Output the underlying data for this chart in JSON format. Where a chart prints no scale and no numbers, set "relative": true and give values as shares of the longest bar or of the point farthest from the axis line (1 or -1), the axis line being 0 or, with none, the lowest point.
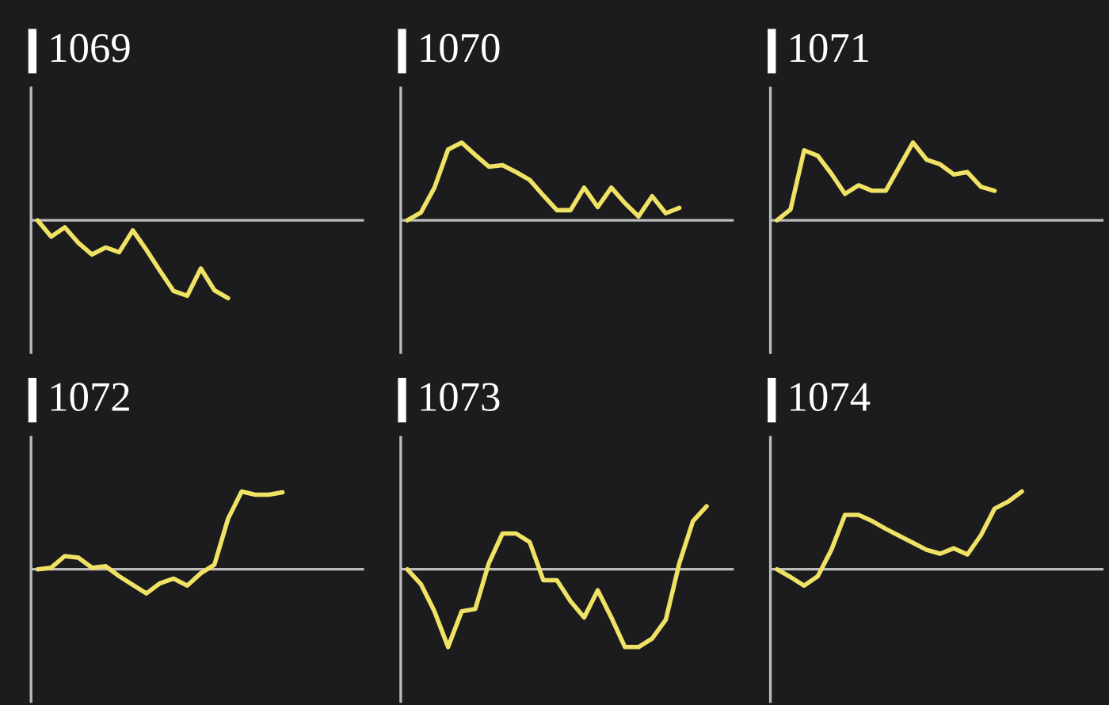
{
  "chart_data": [
    {
      "type": "line",
      "title": "1069",
      "relative": true,
      "color": "#f0e264",
      "categories": [
        null,
        null,
        null,
        null,
        null,
        null,
        null,
        null,
        null,
        null,
        null,
        null,
        null,
        null,
        null,
        null,
        null,
        null,
        null,
        null,
        null,
        null,
        null,
        null
      ],
      "values": [
        0,
        -0.21,
        -0.09,
        -0.29,
        -0.44,
        -0.35,
        -0.41,
        -0.13,
        -0.38,
        -0.65,
        -0.91,
        -0.97,
        -0.62,
        -0.9,
        -1,
        null,
        null,
        null,
        null,
        null,
        null,
        null,
        null,
        null
      ]
    },
    {
      "type": "line",
      "title": "1070",
      "relative": true,
      "color": "#f0e264",
      "categories": [
        null,
        null,
        null,
        null,
        null,
        null,
        null,
        null,
        null,
        null,
        null,
        null,
        null,
        null,
        null,
        null,
        null,
        null,
        null,
        null,
        null,
        null,
        null,
        null
      ],
      "values": [
        0,
        0.1,
        0.42,
        0.91,
        1,
        0.84,
        0.69,
        0.71,
        0.62,
        0.52,
        0.32,
        0.13,
        0.13,
        0.42,
        0.17,
        0.42,
        0.22,
        0.05,
        0.31,
        0.09,
        0.16,
        null,
        null,
        null
      ]
    },
    {
      "type": "line",
      "title": "1071",
      "relative": true,
      "color": "#f0e264",
      "categories": [
        null,
        null,
        null,
        null,
        null,
        null,
        null,
        null,
        null,
        null,
        null,
        null,
        null,
        null,
        null,
        null,
        null,
        null,
        null,
        null,
        null,
        null,
        null,
        null
      ],
      "values": [
        0,
        0.14,
        0.9,
        0.83,
        0.6,
        0.34,
        0.45,
        0.38,
        0.38,
        0.69,
        1,
        0.78,
        0.72,
        0.59,
        0.62,
        0.43,
        0.38,
        null,
        null,
        null,
        null,
        null,
        null,
        null
      ]
    },
    {
      "type": "line",
      "title": "1072",
      "relative": true,
      "color": "#f0e264",
      "categories": [
        null,
        null,
        null,
        null,
        null,
        null,
        null,
        null,
        null,
        null,
        null,
        null,
        null,
        null,
        null,
        null,
        null,
        null,
        null,
        null,
        null,
        null,
        null,
        null
      ],
      "values": [
        0,
        0.02,
        0.17,
        0.15,
        0.02,
        0.04,
        -0.09,
        -0.2,
        -0.31,
        -0.18,
        -0.12,
        -0.21,
        -0.05,
        0.06,
        0.65,
        1,
        0.96,
        0.96,
        0.99,
        null,
        null,
        null,
        null,
        null
      ]
    },
    {
      "type": "line",
      "title": "1073",
      "relative": true,
      "color": "#f0e264",
      "categories": [
        null,
        null,
        null,
        null,
        null,
        null,
        null,
        null,
        null,
        null,
        null,
        null,
        null,
        null,
        null,
        null,
        null,
        null,
        null,
        null,
        null,
        null,
        null,
        null
      ],
      "values": [
        0,
        -0.19,
        -0.54,
        -1,
        -0.54,
        -0.51,
        0.08,
        0.46,
        0.46,
        0.35,
        -0.14,
        -0.14,
        -0.41,
        -0.62,
        -0.27,
        -0.62,
        -1,
        -1,
        -0.89,
        -0.65,
        0.08,
        0.62,
        0.81,
        null
      ]
    },
    {
      "type": "line",
      "title": "1074",
      "relative": true,
      "color": "#f0e264",
      "categories": [
        null,
        null,
        null,
        null,
        null,
        null,
        null,
        null,
        null,
        null,
        null,
        null,
        null,
        null,
        null,
        null,
        null,
        null,
        null,
        null,
        null,
        null,
        null,
        null
      ],
      "values": [
        0,
        -0.1,
        -0.21,
        -0.09,
        0.25,
        0.7,
        0.7,
        0.62,
        0.52,
        0.43,
        0.34,
        0.25,
        0.2,
        0.27,
        0.19,
        0.44,
        0.78,
        0.87,
        1,
        null,
        null,
        null,
        null,
        null
      ]
    }
  ]
}
